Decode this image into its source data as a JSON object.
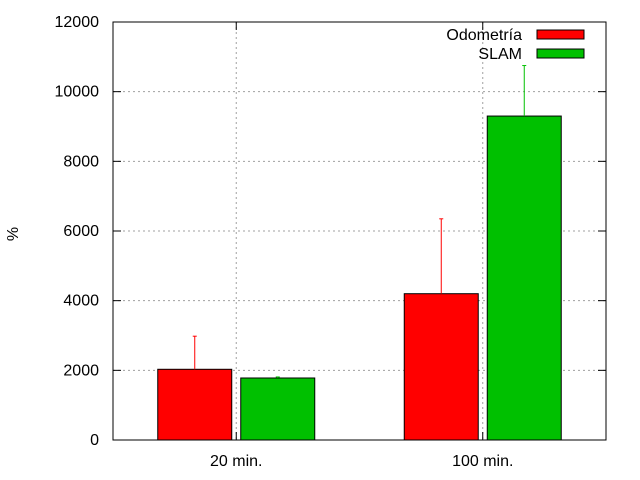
{
  "chart_data": {
    "type": "bar",
    "title": "",
    "xlabel": "",
    "ylabel": "%",
    "categories": [
      "20 min.",
      "100 min."
    ],
    "ylim": [
      0,
      12000
    ],
    "yticks": [
      0,
      2000,
      4000,
      6000,
      8000,
      10000,
      12000
    ],
    "grid": true,
    "legend_position": "top-right",
    "series": [
      {
        "name": "Odometría",
        "color": "#ff0000",
        "values": [
          2030,
          4200
        ],
        "error": [
          950,
          2150
        ]
      },
      {
        "name": "SLAM",
        "color": "#00c000",
        "values": [
          1780,
          9300
        ],
        "error": [
          30,
          1450
        ]
      }
    ]
  }
}
